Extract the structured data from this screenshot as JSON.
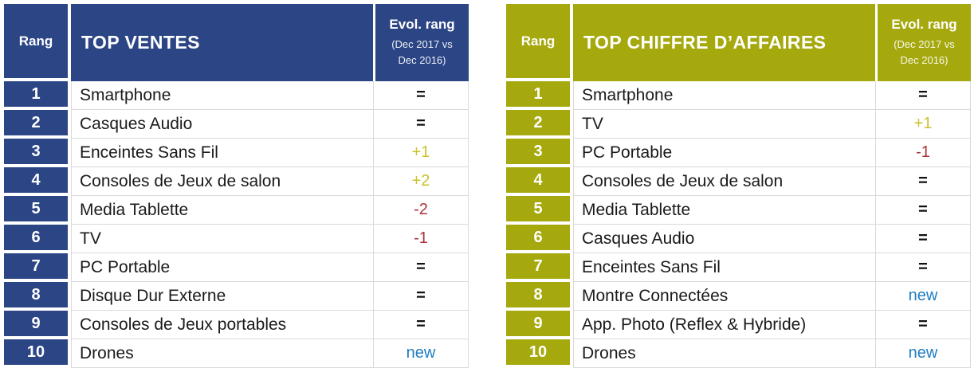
{
  "colors": {
    "header_blue": "#2B4585",
    "header_olive": "#A5A90D",
    "evol_up": "#C9C32B",
    "evol_down": "#A83338",
    "evol_new": "#1E7DC2",
    "row_border": "#D9D9D9",
    "body_text": "#1A1A1A"
  },
  "tables": [
    {
      "id": "top-ventes",
      "rank_header": "Rang",
      "title": "TOP VENTES",
      "evol_header": {
        "line1": "Evol. rang",
        "line2": "(Dec 2017 vs",
        "line3": "Dec 2016)"
      },
      "rows": [
        {
          "rank": "1",
          "name": "Smartphone",
          "evol": "="
        },
        {
          "rank": "2",
          "name": "Casques Audio",
          "evol": "="
        },
        {
          "rank": "3",
          "name": "Enceintes Sans Fil",
          "evol": "+1"
        },
        {
          "rank": "4",
          "name": "Consoles de Jeux de salon",
          "evol": "+2"
        },
        {
          "rank": "5",
          "name": "Media Tablette",
          "evol": "-2"
        },
        {
          "rank": "6",
          "name": "TV",
          "evol": "-1"
        },
        {
          "rank": "7",
          "name": "PC Portable",
          "evol": "="
        },
        {
          "rank": "8",
          "name": "Disque Dur Externe",
          "evol": "="
        },
        {
          "rank": "9",
          "name": "Consoles de Jeux portables",
          "evol": "="
        },
        {
          "rank": "10",
          "name": "Drones",
          "evol": "new"
        }
      ]
    },
    {
      "id": "top-chiffre-affaires",
      "rank_header": "Rang",
      "title": "TOP CHIFFRE D’AFFAIRES",
      "evol_header": {
        "line1": "Evol. rang",
        "line2": "(Dec 2017 vs",
        "line3": "Dec 2016)"
      },
      "rows": [
        {
          "rank": "1",
          "name": "Smartphone",
          "evol": "="
        },
        {
          "rank": "2",
          "name": "TV",
          "evol": "+1"
        },
        {
          "rank": "3",
          "name": "PC Portable",
          "evol": "-1"
        },
        {
          "rank": "4",
          "name": "Consoles de Jeux de salon",
          "evol": "="
        },
        {
          "rank": "5",
          "name": "Media Tablette",
          "evol": "="
        },
        {
          "rank": "6",
          "name": "Casques Audio",
          "evol": "="
        },
        {
          "rank": "7",
          "name": "Enceintes Sans Fil",
          "evol": "="
        },
        {
          "rank": "8",
          "name": "Montre Connectées",
          "evol": "new"
        },
        {
          "rank": "9",
          "name": "App. Photo (Reflex & Hybride)",
          "evol": "="
        },
        {
          "rank": "10",
          "name": "Drones",
          "evol": "new"
        }
      ]
    }
  ],
  "chart_data": [
    {
      "type": "table",
      "title": "TOP VENTES",
      "columns": [
        "Rang",
        "TOP VENTES",
        "Evol. rang (Dec 2017 vs Dec 2016)"
      ],
      "rows": [
        [
          1,
          "Smartphone",
          "="
        ],
        [
          2,
          "Casques Audio",
          "="
        ],
        [
          3,
          "Enceintes Sans Fil",
          "+1"
        ],
        [
          4,
          "Consoles de Jeux de salon",
          "+2"
        ],
        [
          5,
          "Media Tablette",
          "-2"
        ],
        [
          6,
          "TV",
          "-1"
        ],
        [
          7,
          "PC Portable",
          "="
        ],
        [
          8,
          "Disque Dur Externe",
          "="
        ],
        [
          9,
          "Consoles de Jeux portables",
          "="
        ],
        [
          10,
          "Drones",
          "new"
        ]
      ]
    },
    {
      "type": "table",
      "title": "TOP CHIFFRE D’AFFAIRES",
      "columns": [
        "Rang",
        "TOP CHIFFRE D’AFFAIRES",
        "Evol. rang (Dec 2017 vs Dec 2016)"
      ],
      "rows": [
        [
          1,
          "Smartphone",
          "="
        ],
        [
          2,
          "TV",
          "+1"
        ],
        [
          3,
          "PC Portable",
          "-1"
        ],
        [
          4,
          "Consoles de Jeux de salon",
          "="
        ],
        [
          5,
          "Media Tablette",
          "="
        ],
        [
          6,
          "Casques Audio",
          "="
        ],
        [
          7,
          "Enceintes Sans Fil",
          "="
        ],
        [
          8,
          "Montre Connectées",
          "new"
        ],
        [
          9,
          "App. Photo (Reflex & Hybride)",
          "="
        ],
        [
          10,
          "Drones",
          "new"
        ]
      ]
    }
  ]
}
